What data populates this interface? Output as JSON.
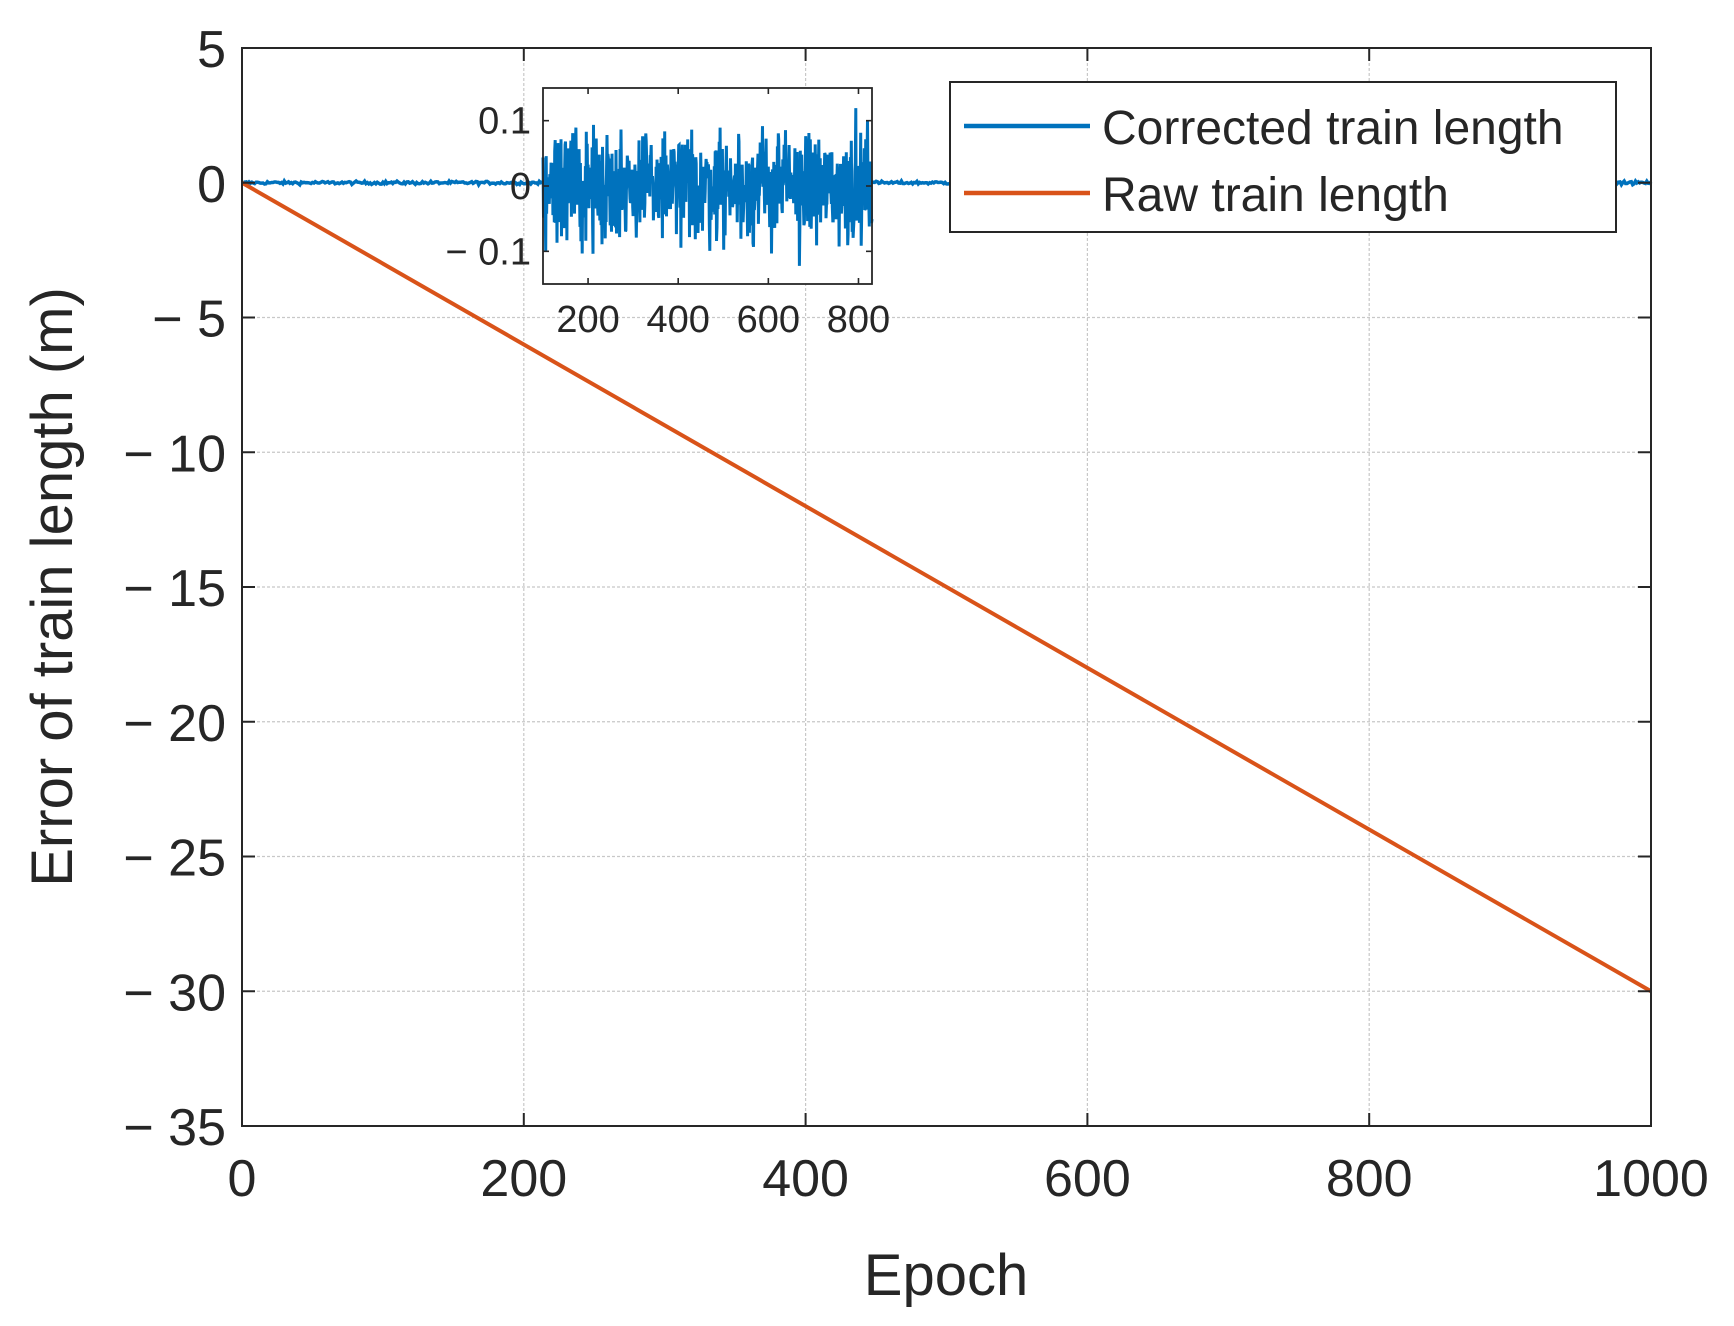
{
  "chart_data": {
    "type": "line",
    "xlabel": "Epoch",
    "ylabel": "Error of train length (m)",
    "xlim": [
      0,
      1000
    ],
    "ylim": [
      -35,
      5
    ],
    "xticks": [
      0,
      200,
      400,
      600,
      800,
      1000
    ],
    "xtick_labels": [
      "0",
      "200",
      "400",
      "600",
      "800",
      "1000"
    ],
    "yticks": [
      5,
      0,
      -5,
      -10,
      -15,
      -20,
      -25,
      -30,
      -35
    ],
    "ytick_labels": [
      "5",
      "0",
      "− 5",
      "− 10",
      "− 15",
      "− 20",
      "− 25",
      "− 30",
      "− 35"
    ],
    "grid": true,
    "legend_position": "top-right",
    "series": [
      {
        "name": "Corrected train length",
        "color": "#0072BD",
        "description_values": "noise around 0, std approx 0.04 m",
        "x_range": [
          1,
          1000
        ],
        "noise_amplitude": 0.05
      },
      {
        "name": "Raw train length",
        "color": "#D95319",
        "x": [
          0,
          1000
        ],
        "y": [
          0,
          -30
        ]
      }
    ],
    "inset": {
      "xlim": [
        100,
        830
      ],
      "ylim": [
        -0.15,
        0.15
      ],
      "xticks": [
        200,
        400,
        600,
        800
      ],
      "xtick_labels": [
        "200",
        "400",
        "600",
        "800"
      ],
      "yticks": [
        0.1,
        0,
        -0.1
      ],
      "ytick_labels": [
        "0.1",
        "0",
        "− 0.1"
      ],
      "series_name": "Corrected train length",
      "noise_amplitude": 0.1
    }
  }
}
